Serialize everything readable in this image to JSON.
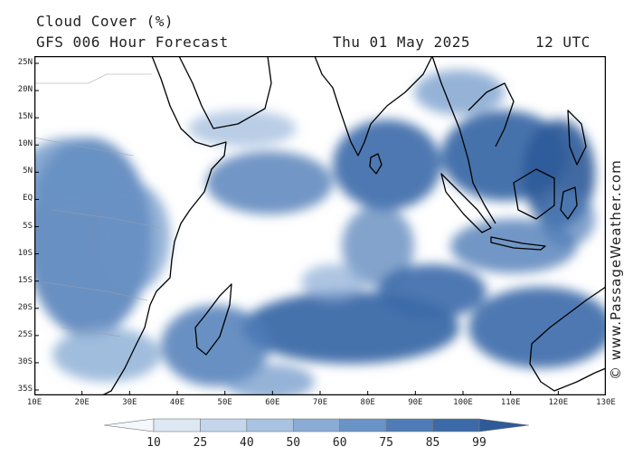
{
  "header": {
    "title": "Cloud Cover (%)",
    "model": "GFS 006 Hour Forecast",
    "date": "Thu 01 May 2025",
    "time": "12 UTC"
  },
  "credit": "© www.PassageWeather.com",
  "map": {
    "lat_labels": [
      "25N",
      "20N",
      "15N",
      "10N",
      "5N",
      "EQ",
      "5S",
      "10S",
      "15S",
      "20S",
      "25S",
      "30S",
      "35S"
    ],
    "lon_labels": [
      "10E",
      "20E",
      "30E",
      "40E",
      "50E",
      "60E",
      "70E",
      "80E",
      "90E",
      "100E",
      "110E",
      "120E",
      "130E"
    ],
    "lat_range": [
      -35,
      25
    ],
    "lon_range": [
      10,
      130
    ]
  },
  "legend": {
    "labels": [
      "10",
      "25",
      "40",
      "50",
      "60",
      "75",
      "85",
      "99"
    ],
    "colors": [
      "#f4f8fc",
      "#dde8f4",
      "#c4d6ec",
      "#a9c3e2",
      "#8aacd5",
      "#6a93c6",
      "#4f7cb7",
      "#3c6aa8",
      "#2e5a98"
    ]
  }
}
